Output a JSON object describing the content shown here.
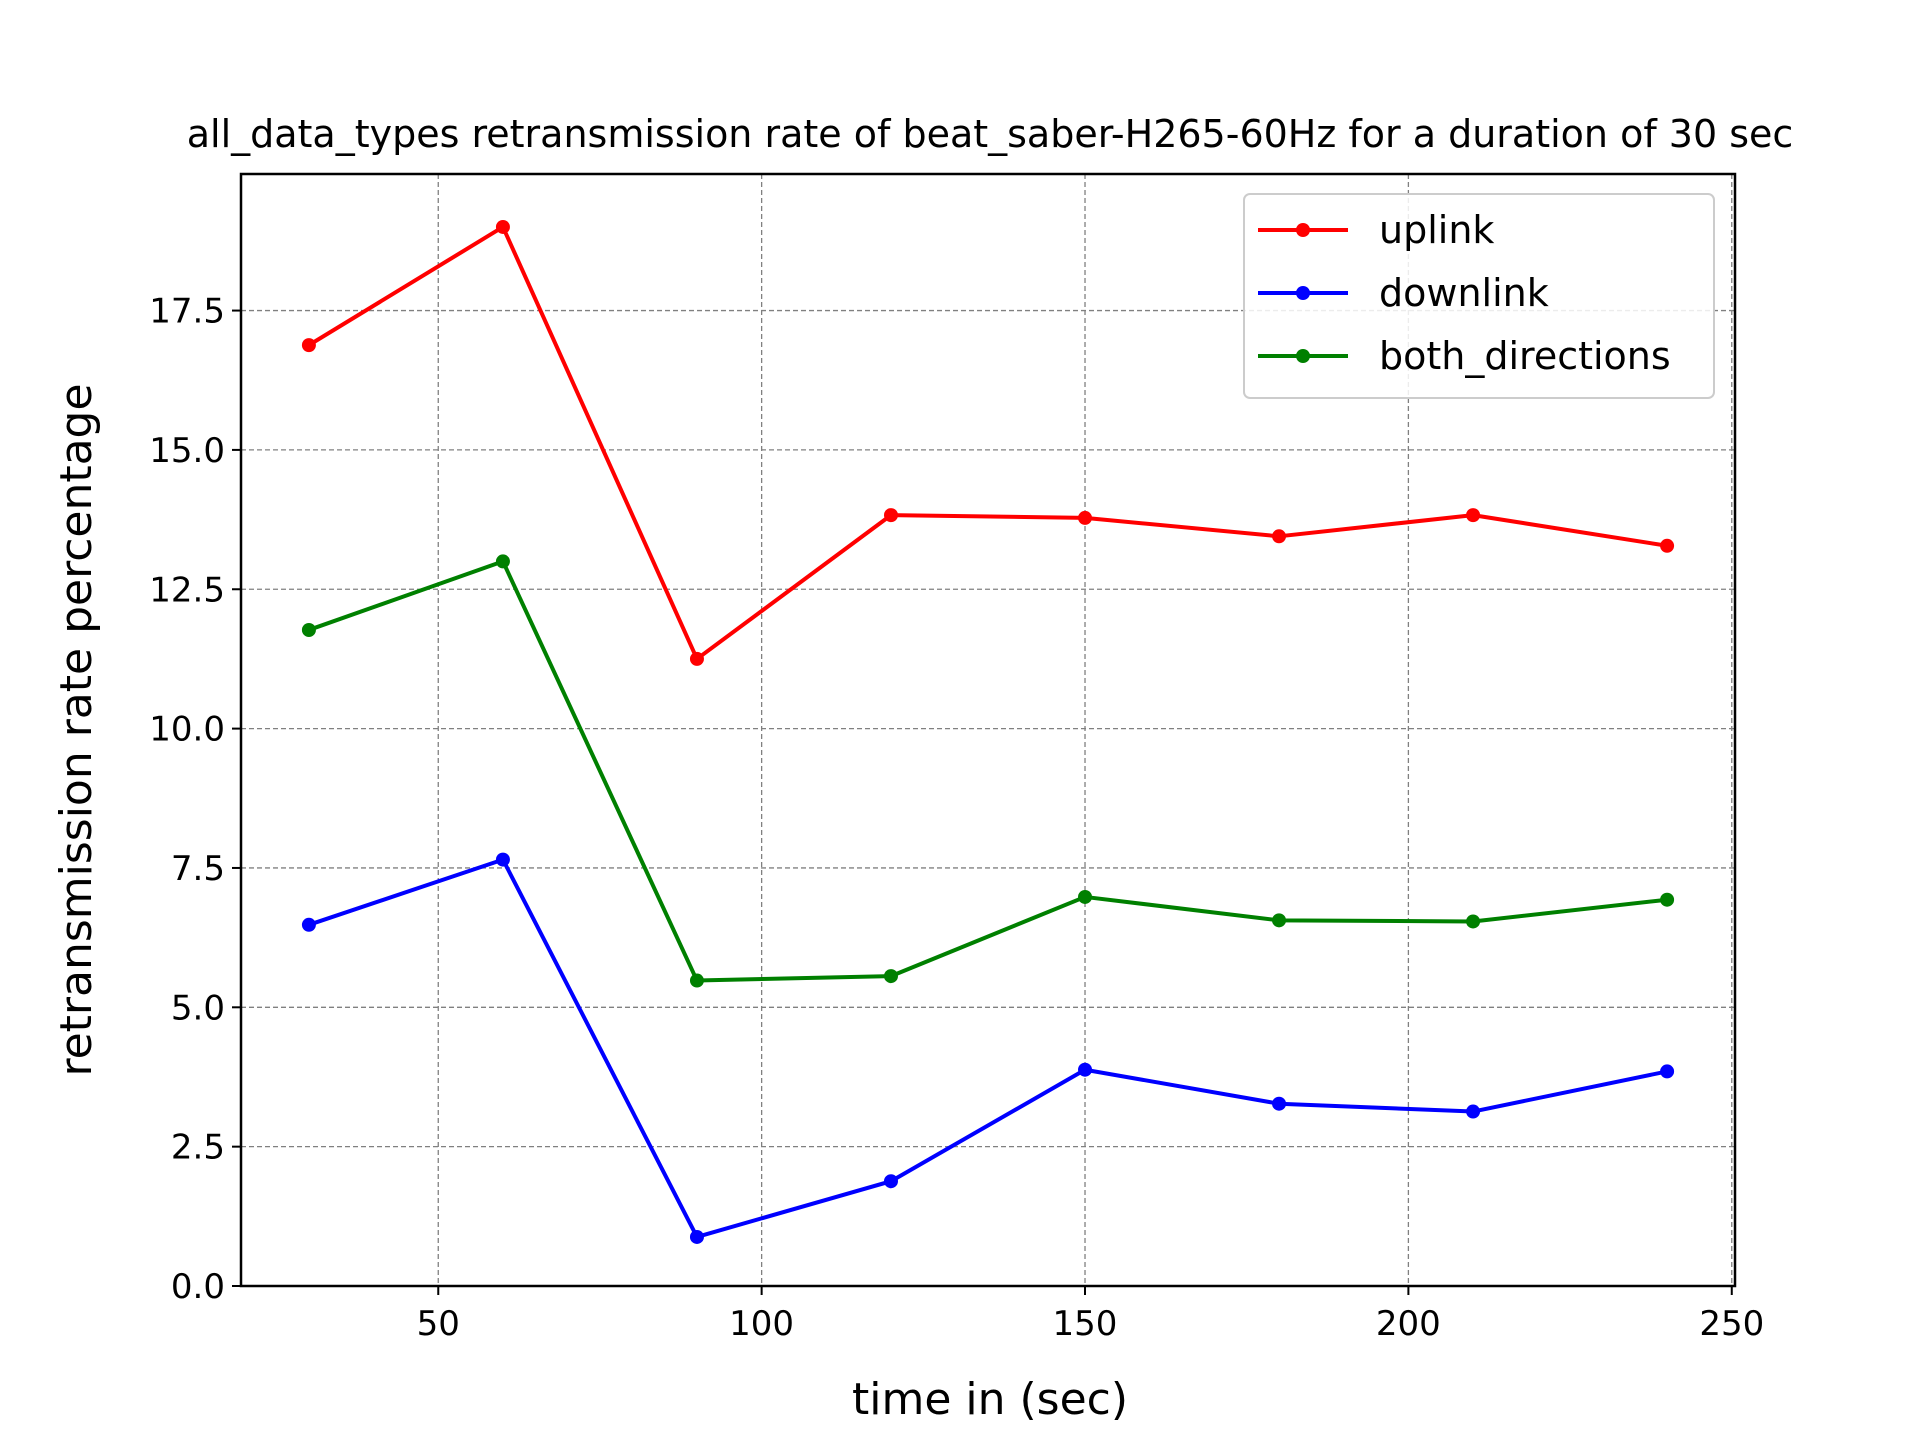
{
  "chart_data": {
    "type": "line",
    "title": "all_data_types retransmission rate of beat_saber-H265-60Hz for a duration of 30 sec",
    "xlabel": "time in (sec)",
    "ylabel": "retransmission rate percentage",
    "x": [
      30,
      60,
      90,
      120,
      150,
      180,
      210,
      240
    ],
    "xlim": [
      19.5,
      250.5
    ],
    "ylim": [
      0,
      19.95
    ],
    "xticks": [
      50,
      100,
      150,
      200,
      250
    ],
    "yticks": [
      0.0,
      2.5,
      5.0,
      7.5,
      10.0,
      12.5,
      15.0,
      17.5
    ],
    "xtick_labels": [
      "50",
      "100",
      "150",
      "200",
      "250"
    ],
    "ytick_labels": [
      "0.0",
      "2.5",
      "5.0",
      "7.5",
      "10.0",
      "12.5",
      "15.0",
      "17.5"
    ],
    "grid": true,
    "legend_position": "top-right",
    "series": [
      {
        "name": "uplink",
        "color": "#ff0000",
        "values": [
          16.88,
          19.0,
          11.25,
          13.83,
          13.78,
          13.45,
          13.83,
          13.28
        ]
      },
      {
        "name": "downlink",
        "color": "#0000ff",
        "values": [
          6.48,
          7.65,
          0.88,
          1.88,
          3.88,
          3.27,
          3.13,
          3.85
        ]
      },
      {
        "name": "both_directions",
        "color": "#008000",
        "values": [
          11.77,
          13.0,
          5.48,
          5.56,
          6.98,
          6.56,
          6.54,
          6.93
        ]
      }
    ]
  }
}
